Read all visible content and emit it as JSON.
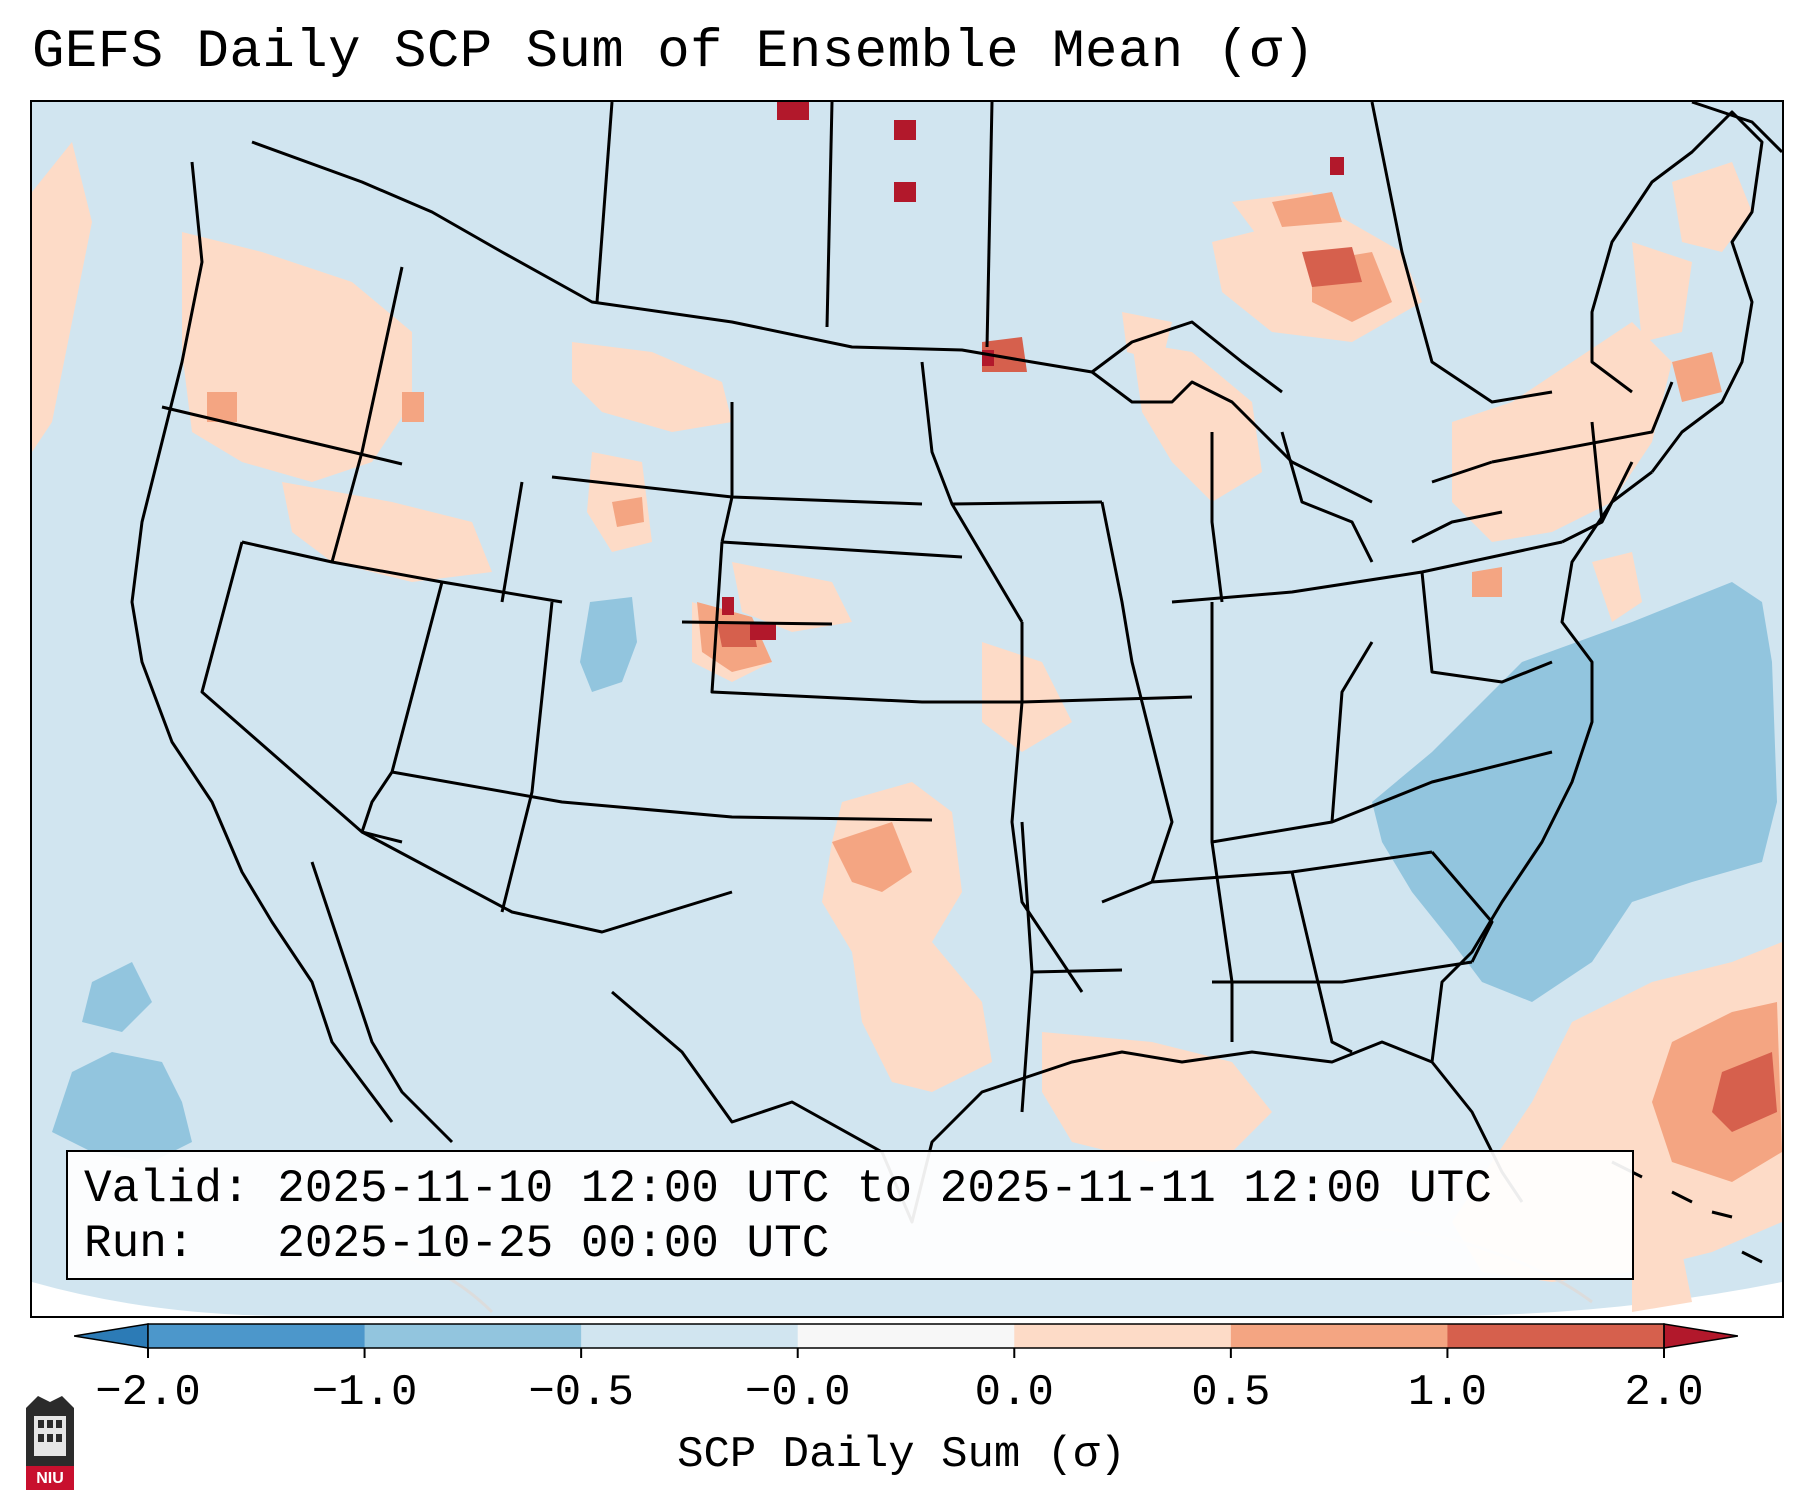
{
  "title": "GEFS Daily SCP Sum of Ensemble Mean (σ)",
  "valid_line": "Valid: 2025-11-10 12:00 UTC to 2025-11-11 12:00 UTC",
  "run_line": "Run:   2025-10-25 00:00 UTC",
  "colorbar": {
    "label": "SCP Daily Sum (σ)",
    "ticks": [
      "−2.0",
      "−1.0",
      "−0.5",
      "−0.0",
      "0.0",
      "0.5",
      "1.0",
      "2.0"
    ],
    "colors": [
      "#2c7bb6",
      "#4c97cb",
      "#92c5de",
      "#d1e5f0",
      "#f7f7f7",
      "#fddbc7",
      "#f4a582",
      "#d6604d",
      "#b2182b"
    ]
  },
  "map": {
    "background_color": "#d1e5f0",
    "border_color": "#000000",
    "legend_anomaly_levels": {
      "light_positive": "#fddbc7",
      "medium_positive": "#f4a582",
      "strong_positive": "#d6604d",
      "extreme_positive": "#b2182b",
      "light_negative": "#92c5de"
    }
  },
  "logo": {
    "text": "NIU"
  }
}
